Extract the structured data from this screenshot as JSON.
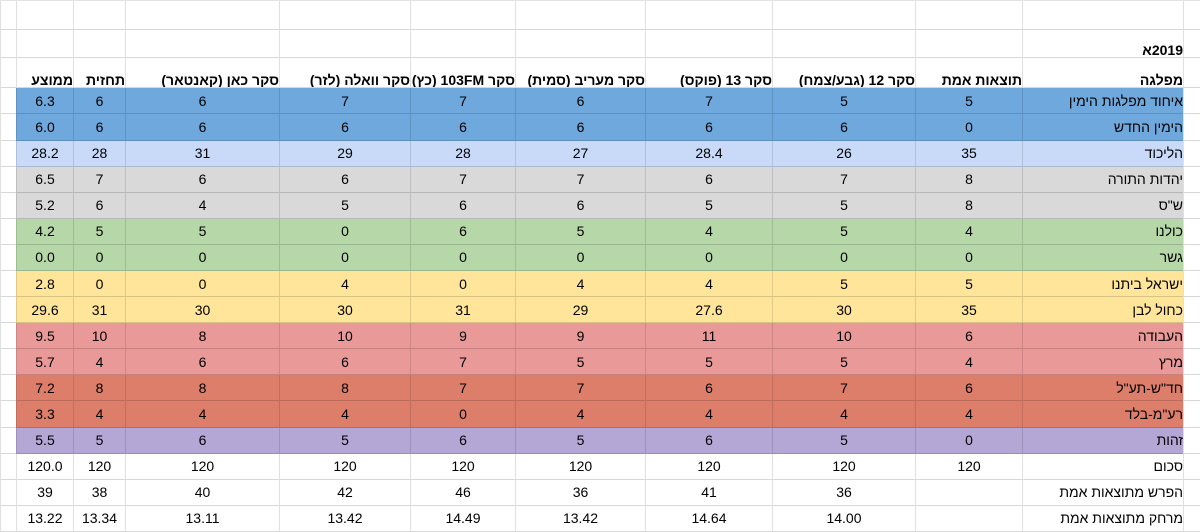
{
  "title": "2019א",
  "columns": [
    {
      "id": "party",
      "label": "מפלגה"
    },
    {
      "id": "actual",
      "label": "תוצאות אמת"
    },
    {
      "id": "poll12",
      "label": "סקר 12 (גבע/צמח)"
    },
    {
      "id": "poll13",
      "label": "סקר 13 (פוקס)"
    },
    {
      "id": "maariv",
      "label": "סקר מעריב (סמית)"
    },
    {
      "id": "fm103",
      "label": "סקר 103FM (כץ)"
    },
    {
      "id": "walla",
      "label": "סקר וואלה (לזר)"
    },
    {
      "id": "kan",
      "label": "סקר כאן (קאנטאר)"
    },
    {
      "id": "forecast",
      "label": "תחזית"
    },
    {
      "id": "average",
      "label": "ממוצע"
    }
  ],
  "value_column_order": [
    "actual",
    "poll12",
    "poll13",
    "maariv",
    "fm103",
    "walla",
    "kan",
    "forecast",
    "average"
  ],
  "party_rows": [
    {
      "label": "איחוד מפלגות הימין",
      "bg": "#6fa8dc",
      "values": [
        "5",
        "5",
        "7",
        "6",
        "7",
        "7",
        "6",
        "6",
        "6.3"
      ]
    },
    {
      "label": "הימין החדש",
      "bg": "#6fa8dc",
      "values": [
        "0",
        "6",
        "6",
        "6",
        "6",
        "6",
        "6",
        "6",
        "6.0"
      ]
    },
    {
      "label": "הליכוד",
      "bg": "#c9daf8",
      "values": [
        "35",
        "26",
        "28.4",
        "27",
        "28",
        "29",
        "31",
        "28",
        "28.2"
      ]
    },
    {
      "label": "יהדות התורה",
      "bg": "#d9d9d9",
      "values": [
        "8",
        "7",
        "6",
        "7",
        "7",
        "6",
        "6",
        "7",
        "6.5"
      ]
    },
    {
      "label": "ש\"ס",
      "bg": "#d9d9d9",
      "values": [
        "8",
        "5",
        "5",
        "6",
        "6",
        "5",
        "4",
        "6",
        "5.2"
      ]
    },
    {
      "label": "כולנו",
      "bg": "#b6d7a8",
      "values": [
        "4",
        "5",
        "4",
        "5",
        "6",
        "0",
        "5",
        "5",
        "4.2"
      ]
    },
    {
      "label": "גשר",
      "bg": "#b6d7a8",
      "values": [
        "0",
        "0",
        "0",
        "0",
        "0",
        "0",
        "0",
        "0",
        "0.0"
      ]
    },
    {
      "label": "ישראל ביתנו",
      "bg": "#ffe599",
      "values": [
        "5",
        "5",
        "4",
        "4",
        "0",
        "4",
        "0",
        "0",
        "2.8"
      ]
    },
    {
      "label": "כחול לבן",
      "bg": "#ffe599",
      "values": [
        "35",
        "30",
        "27.6",
        "29",
        "31",
        "30",
        "30",
        "31",
        "29.6"
      ]
    },
    {
      "label": "העבודה",
      "bg": "#ea9999",
      "values": [
        "6",
        "10",
        "11",
        "9",
        "9",
        "10",
        "8",
        "10",
        "9.5"
      ]
    },
    {
      "label": "מרץ",
      "bg": "#ea9999",
      "values": [
        "4",
        "5",
        "5",
        "5",
        "7",
        "6",
        "6",
        "4",
        "5.7"
      ]
    },
    {
      "label": "חד\"ש-תע\"ל",
      "bg": "#dd7e6b",
      "values": [
        "6",
        "7",
        "6",
        "7",
        "7",
        "8",
        "8",
        "8",
        "7.2"
      ]
    },
    {
      "label": "רע\"מ-בלד",
      "bg": "#dd7e6b",
      "values": [
        "4",
        "4",
        "4",
        "4",
        "0",
        "4",
        "4",
        "4",
        "3.3"
      ]
    },
    {
      "label": "זהות",
      "bg": "#b4a7d6",
      "values": [
        "0",
        "5",
        "6",
        "5",
        "6",
        "5",
        "6",
        "5",
        "5.5"
      ]
    }
  ],
  "summary_rows": [
    {
      "label": "סכום",
      "bg": "",
      "values": [
        "120",
        "120",
        "120",
        "120",
        "120",
        "120",
        "120",
        "120",
        "120.0"
      ]
    },
    {
      "label": "הפרש מתוצאות אמת",
      "bg": "",
      "values": [
        "",
        "36",
        "41",
        "36",
        "46",
        "42",
        "40",
        "38",
        "39"
      ]
    },
    {
      "label": "מרחק מתוצאות אמת",
      "bg": "",
      "values": [
        "",
        "14.00",
        "14.64",
        "13.42",
        "14.49",
        "13.42",
        "13.11",
        "13.34",
        "13.22"
      ]
    }
  ]
}
